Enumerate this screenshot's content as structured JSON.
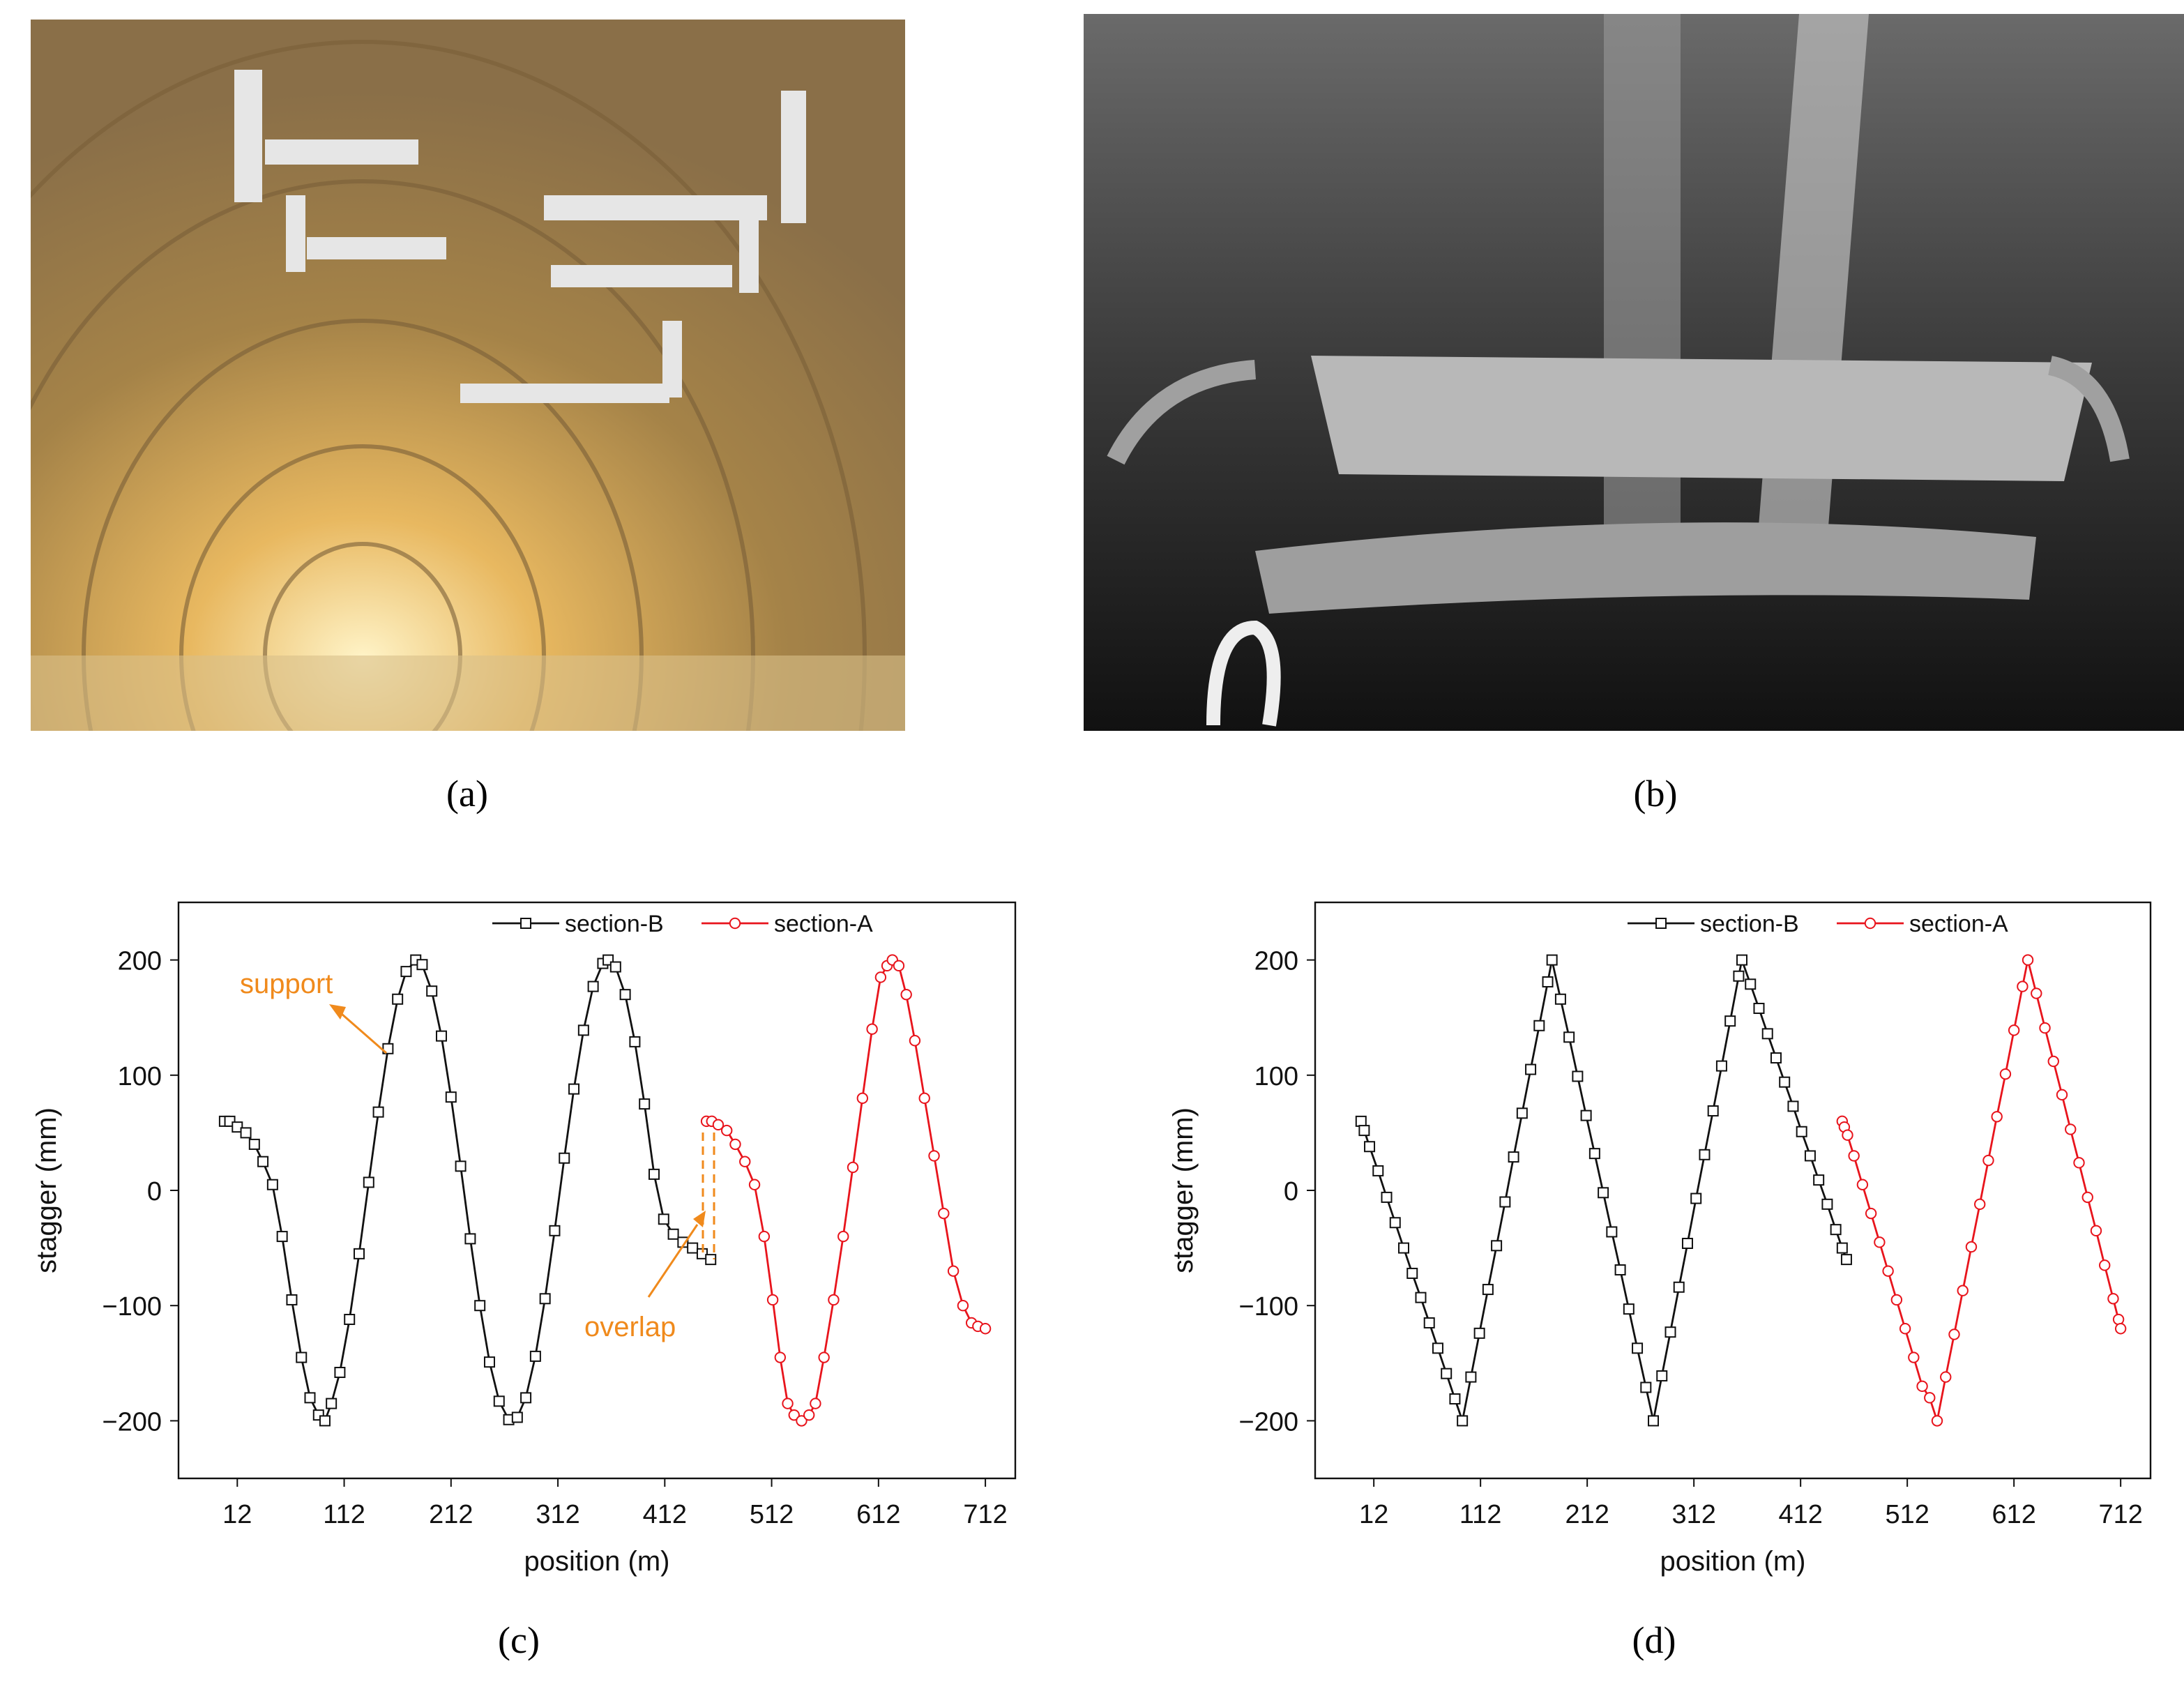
{
  "captions": [
    "(a)",
    "(b)",
    "(c)",
    "(d)"
  ],
  "chart_data": [
    {
      "type": "line",
      "xlabel": "position (m)",
      "ylabel": "stagger (mm)",
      "xlim": [
        -43,
        740
      ],
      "ylim": [
        -250,
        250
      ],
      "xticks": [
        12,
        112,
        212,
        312,
        412,
        512,
        612,
        712
      ],
      "yticks": [
        {
          "value": -200,
          "label": "−200"
        },
        {
          "value": -100,
          "label": "−100"
        },
        0,
        100,
        200
      ],
      "legend": "upper right",
      "annotations": [
        {
          "text": "support",
          "color": "#f08a1c"
        },
        {
          "text": "overlap",
          "color": "#f08a1c"
        }
      ],
      "series": [
        {
          "name": "section-B",
          "color": "#111111",
          "marker": "square",
          "x": [
            0,
            5,
            12,
            20,
            28,
            36,
            45,
            54,
            63,
            72,
            80,
            88,
            94,
            100,
            108,
            117,
            126,
            135,
            144,
            153,
            162,
            170,
            179,
            185,
            194,
            203,
            212,
            221,
            230,
            239,
            248,
            257,
            266,
            274,
            282,
            291,
            300,
            309,
            318,
            327,
            336,
            345,
            354,
            359,
            366,
            375,
            384,
            393,
            402,
            411,
            420,
            429,
            438,
            447,
            455
          ],
          "values": [
            60,
            60,
            55,
            50,
            40,
            25,
            5,
            -40,
            -95,
            -145,
            -180,
            -195,
            -200,
            -185,
            -158,
            -112,
            -55,
            7,
            68,
            123,
            166,
            190,
            200,
            196,
            173,
            134,
            81,
            21,
            -42,
            -100,
            -149,
            -183,
            -199,
            -197,
            -180,
            -144,
            -94,
            -35,
            28,
            88,
            139,
            177,
            197,
            200,
            194,
            170,
            129,
            75,
            14,
            -25,
            -38,
            -45,
            -50,
            -55,
            -60
          ]
        },
        {
          "name": "section-A",
          "color": "#e8141c",
          "marker": "circle",
          "x": [
            451,
            456,
            462,
            470,
            478,
            487,
            496,
            505,
            513,
            520,
            527,
            533,
            540,
            547,
            553,
            561,
            570,
            579,
            588,
            597,
            606,
            614,
            620,
            625,
            631,
            638,
            646,
            655,
            664,
            673,
            682,
            691,
            699,
            705,
            712
          ],
          "values": [
            60,
            60,
            57,
            52,
            40,
            25,
            5,
            -40,
            -95,
            -145,
            -185,
            -195,
            -200,
            -195,
            -185,
            -145,
            -95,
            -40,
            20,
            80,
            140,
            185,
            195,
            200,
            195,
            170,
            130,
            80,
            30,
            -20,
            -70,
            -100,
            -115,
            -118,
            -120
          ]
        }
      ]
    },
    {
      "type": "line",
      "xlabel": "position (m)",
      "ylabel": "stagger (mm)",
      "xlim": [
        -43,
        740
      ],
      "ylim": [
        -250,
        250
      ],
      "xticks": [
        12,
        112,
        212,
        312,
        412,
        512,
        612,
        712
      ],
      "yticks": [
        {
          "value": -200,
          "label": "−200"
        },
        {
          "value": -100,
          "label": "−100"
        },
        0,
        100,
        200
      ],
      "legend": "upper right",
      "series": [
        {
          "name": "section-B",
          "color": "#111111",
          "marker": "square",
          "x": [
            0,
            3,
            8,
            16,
            24,
            32,
            40,
            48,
            56,
            64,
            72,
            80,
            88,
            95,
            103,
            111,
            119,
            127,
            135,
            143,
            151,
            159,
            167,
            175,
            179,
            187,
            195,
            203,
            211,
            219,
            227,
            235,
            243,
            251,
            259,
            267,
            274,
            282,
            290,
            298,
            306,
            314,
            322,
            330,
            338,
            346,
            354,
            357,
            365,
            373,
            381,
            389,
            397,
            405,
            413,
            421,
            429,
            437,
            445,
            451,
            455
          ],
          "values": [
            60,
            52,
            38,
            17,
            -6,
            -28,
            -50,
            -72,
            -93,
            -115,
            -137,
            -159,
            -181,
            -200,
            -162,
            -124,
            -86,
            -48,
            -10,
            29,
            67,
            105,
            143,
            181,
            200,
            166,
            133,
            99,
            65,
            32,
            -2,
            -36,
            -69,
            -103,
            -137,
            -171,
            -200,
            -161,
            -123,
            -84,
            -46,
            -7,
            31,
            69,
            108,
            147,
            186,
            200,
            179,
            158,
            136,
            115,
            94,
            73,
            51,
            30,
            9,
            -12,
            -34,
            -50,
            -60
          ]
        },
        {
          "name": "section-A",
          "color": "#e8141c",
          "marker": "circle",
          "x": [
            451,
            453,
            456,
            462,
            470,
            478,
            486,
            494,
            502,
            510,
            518,
            526,
            533,
            540,
            548,
            556,
            564,
            572,
            580,
            588,
            596,
            604,
            612,
            620,
            625,
            633,
            641,
            649,
            657,
            665,
            673,
            681,
            689,
            697,
            705,
            710,
            712
          ],
          "values": [
            60,
            55,
            48,
            30,
            5,
            -20,
            -45,
            -70,
            -95,
            -120,
            -145,
            -170,
            -180,
            -200,
            -162,
            -125,
            -87,
            -49,
            -12,
            26,
            64,
            101,
            139,
            177,
            200,
            171,
            141,
            112,
            83,
            53,
            24,
            -6,
            -35,
            -65,
            -94,
            -112,
            -120
          ]
        }
      ]
    }
  ]
}
